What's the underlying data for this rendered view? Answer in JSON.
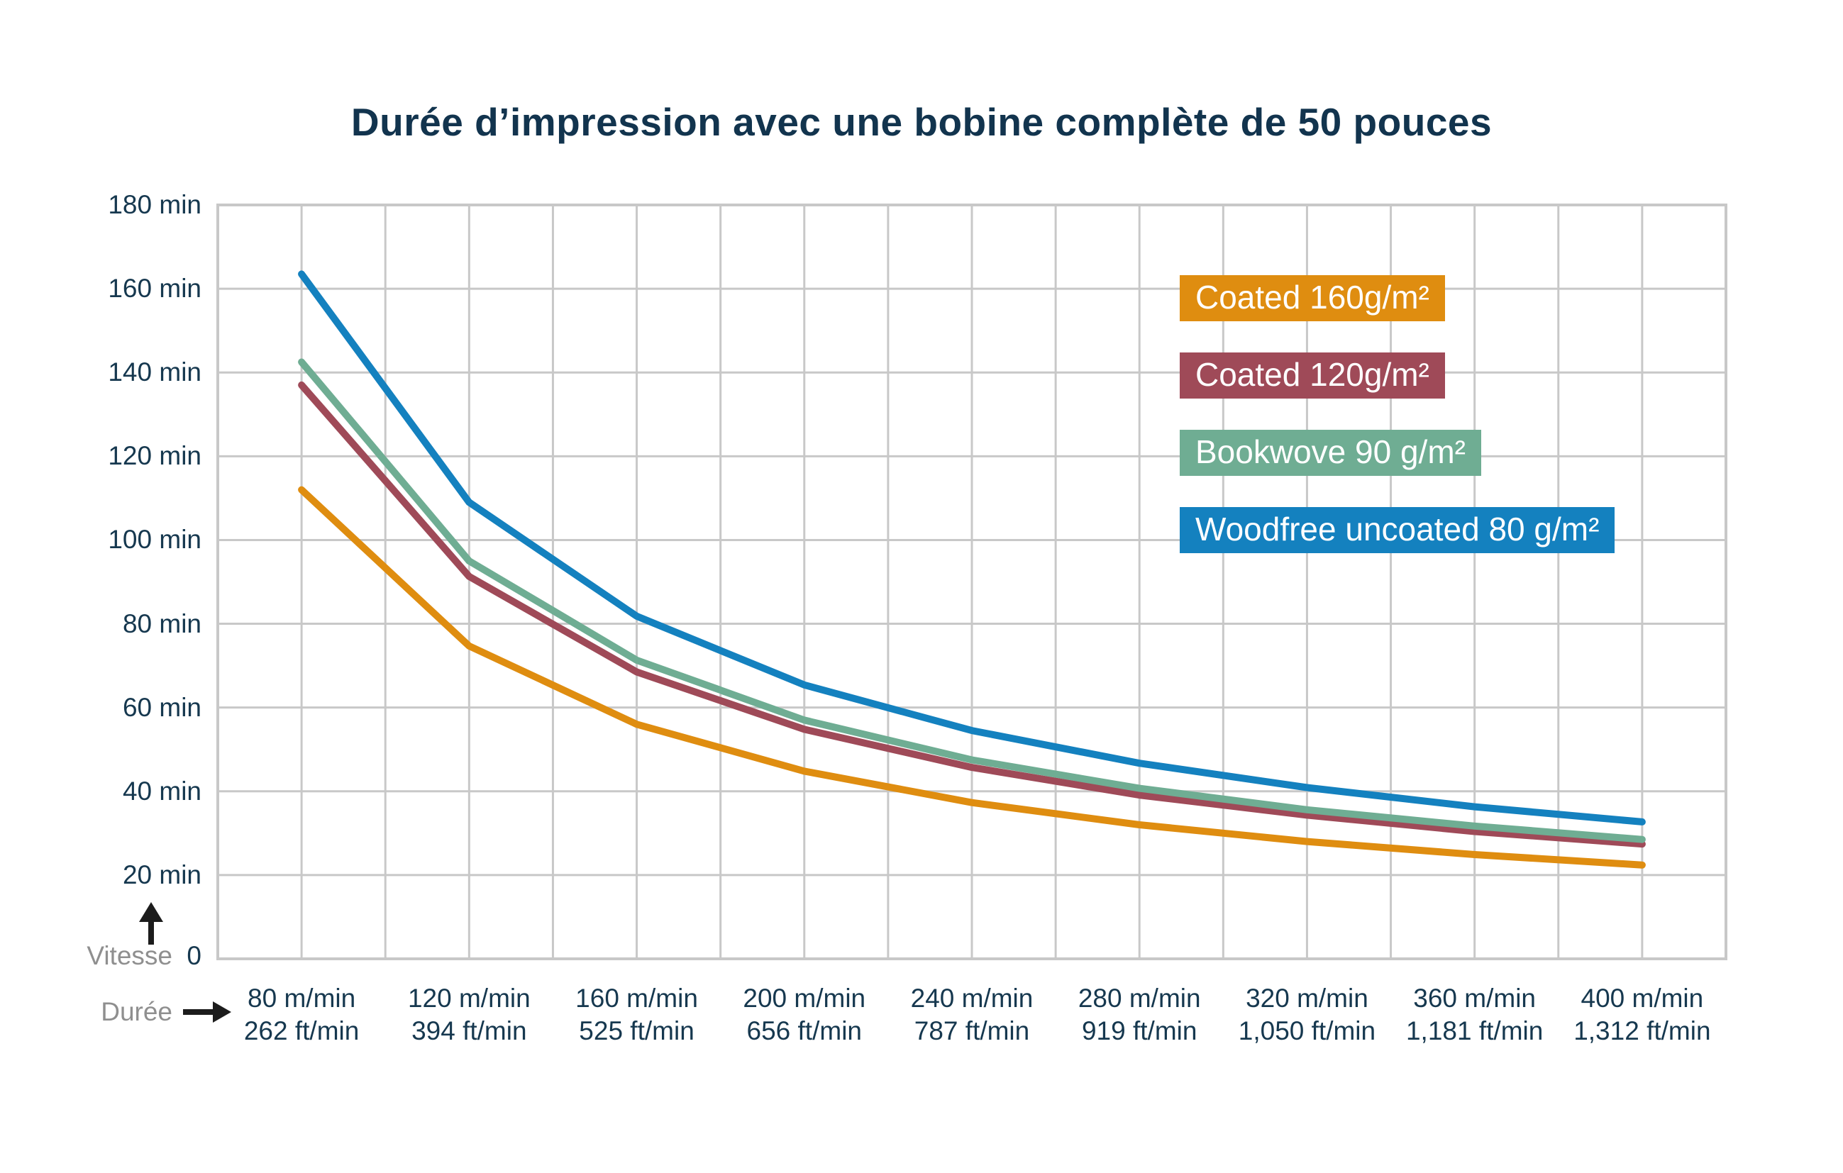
{
  "title": "Durée d’impression avec une bobine complète de 50 pouces",
  "y_axis": {
    "tick_labels": [
      "180 min",
      "160 min",
      "140 min",
      "120 min",
      "100 min",
      "80 min",
      "60 min",
      "40 min",
      "20 min"
    ],
    "origin_label": "0",
    "arrow_label": "Vitesse"
  },
  "x_axis": {
    "arrow_label": "Durée",
    "categories": [
      {
        "m": "80 m/min",
        "ft": "262 ft/min"
      },
      {
        "m": "120 m/min",
        "ft": "394 ft/min"
      },
      {
        "m": "160 m/min",
        "ft": "525 ft/min"
      },
      {
        "m": "200 m/min",
        "ft": "656 ft/min"
      },
      {
        "m": "240 m/min",
        "ft": "787 ft/min"
      },
      {
        "m": "280 m/min",
        "ft": "919 ft/min"
      },
      {
        "m": "320 m/min",
        "ft": "1,050 ft/min"
      },
      {
        "m": "360 m/min",
        "ft": "1,181 ft/min"
      },
      {
        "m": "400 m/min",
        "ft": "1,312 ft/min"
      }
    ]
  },
  "legend": [
    {
      "label": "Coated 160g/m²",
      "color": "#DF8D10"
    },
    {
      "label": "Coated 120g/m²",
      "color": "#9F4A58"
    },
    {
      "label": "Bookwove 90 g/m²",
      "color": "#6FAD93"
    },
    {
      "label": "Woodfree uncoated 80 g/m²",
      "color": "#1481BF"
    }
  ],
  "chart_data": {
    "type": "line",
    "title": "Durée d’impression avec une bobine complète de 50 pouces",
    "xlabel": "Vitesse (m/min, ft/min)",
    "ylabel": "Durée (min)",
    "x_speeds_m_per_min": [
      80,
      120,
      160,
      200,
      240,
      280,
      320,
      360,
      400
    ],
    "x_speeds_ft_per_min": [
      262,
      394,
      525,
      656,
      787,
      919,
      1050,
      1181,
      1312
    ],
    "series": [
      {
        "name": "Coated 160g/m²",
        "color": "#DF8D10",
        "values_min": [
          112.0,
          74.7,
          56.0,
          44.8,
          37.3,
          32.0,
          28.0,
          24.9,
          22.4
        ]
      },
      {
        "name": "Coated 120g/m²",
        "color": "#9F4A58",
        "values_min": [
          137.0,
          91.3,
          68.5,
          54.8,
          45.7,
          39.1,
          34.3,
          30.4,
          27.4
        ]
      },
      {
        "name": "Bookwove 90 g/m²",
        "color": "#6FAD93",
        "values_min": [
          142.5,
          95.0,
          71.3,
          57.0,
          47.5,
          40.7,
          35.6,
          31.7,
          28.5
        ]
      },
      {
        "name": "Woodfree uncoated 80 g/m²",
        "color": "#1481BF",
        "values_min": [
          163.5,
          109.0,
          81.8,
          65.4,
          54.5,
          46.7,
          40.9,
          36.3,
          32.7
        ]
      }
    ],
    "ylim": [
      0,
      180
    ],
    "y_tick_step_min": 20,
    "grid": true,
    "legend_position": "upper-right-inside"
  },
  "colors": {
    "background": "#FFFFFF",
    "title_text": "#12344E",
    "tick_text": "#16384F",
    "hint_text": "#8F8F8F",
    "grid": "#C8C8C8",
    "arrow": "#1C1C1C"
  }
}
